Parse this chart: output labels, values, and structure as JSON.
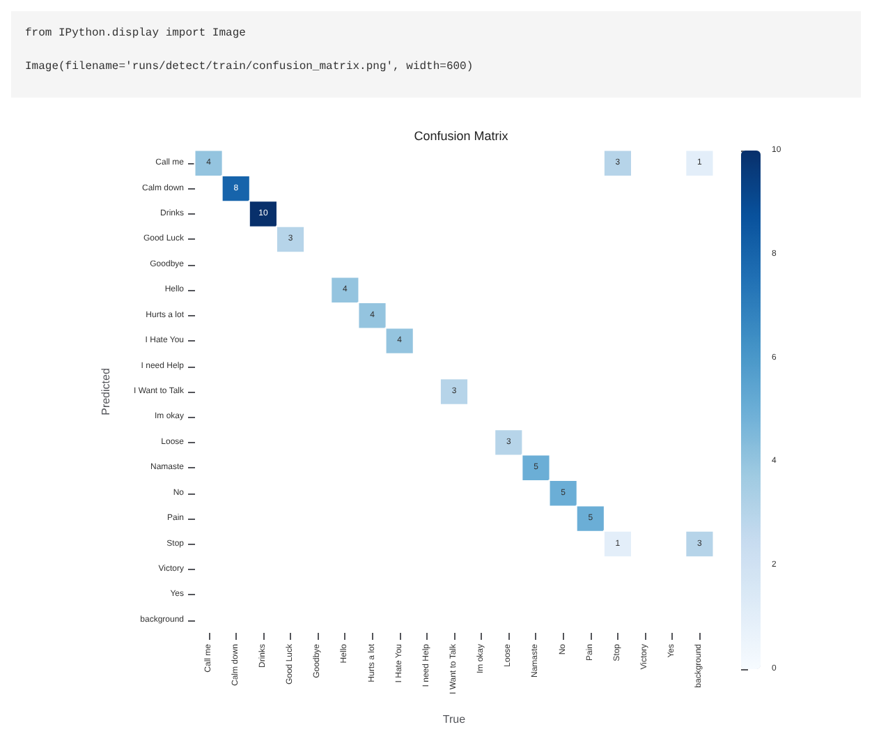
{
  "chart_data": {
    "type": "heatmap",
    "title": "Confusion Matrix",
    "xlabel": "True",
    "ylabel": "Predicted",
    "annotations": [
      "from IPython.display import Image",
      "Image(filename='runs/detect/train/confusion_matrix.png', width=600)"
    ],
    "categories": [
      "Call me",
      "Calm down",
      "Drinks",
      "Good Luck",
      "Goodbye",
      "Hello",
      "Hurts a lot",
      "I Hate You",
      "I need Help",
      "I Want to Talk",
      "Im okay",
      "Loose",
      "Namaste",
      "No",
      "Pain",
      "Stop",
      "Victory",
      "Yes",
      "background"
    ],
    "y_categories": [
      "Call me",
      "Calm down",
      "Drinks",
      "Good Luck",
      "Goodbye",
      "Hello",
      "Hurts a lot",
      "I Hate You",
      "I need Help",
      "I Want to Talk",
      "Im okay",
      "Loose",
      "Namaste",
      "No",
      "Pain",
      "Stop",
      "Victory",
      "Yes",
      "background"
    ],
    "cells": [
      [
        4,
        null,
        null,
        null,
        null,
        null,
        null,
        null,
        null,
        null,
        null,
        null,
        null,
        null,
        null,
        3,
        null,
        null,
        1
      ],
      [
        null,
        8,
        null,
        null,
        null,
        null,
        null,
        null,
        null,
        null,
        null,
        null,
        null,
        null,
        null,
        null,
        null,
        null,
        null
      ],
      [
        null,
        null,
        10,
        null,
        null,
        null,
        null,
        null,
        null,
        null,
        null,
        null,
        null,
        null,
        null,
        null,
        null,
        null,
        null
      ],
      [
        null,
        null,
        null,
        3,
        null,
        null,
        null,
        null,
        null,
        null,
        null,
        null,
        null,
        null,
        null,
        null,
        null,
        null,
        null
      ],
      [
        null,
        null,
        null,
        null,
        null,
        null,
        null,
        null,
        null,
        null,
        null,
        null,
        null,
        null,
        null,
        null,
        null,
        null,
        null
      ],
      [
        null,
        null,
        null,
        null,
        null,
        4,
        null,
        null,
        null,
        null,
        null,
        null,
        null,
        null,
        null,
        null,
        null,
        null,
        null
      ],
      [
        null,
        null,
        null,
        null,
        null,
        null,
        4,
        null,
        null,
        null,
        null,
        null,
        null,
        null,
        null,
        null,
        null,
        null,
        null
      ],
      [
        null,
        null,
        null,
        null,
        null,
        null,
        null,
        4,
        null,
        null,
        null,
        null,
        null,
        null,
        null,
        null,
        null,
        null,
        null
      ],
      [
        null,
        null,
        null,
        null,
        null,
        null,
        null,
        null,
        null,
        null,
        null,
        null,
        null,
        null,
        null,
        null,
        null,
        null,
        null
      ],
      [
        null,
        null,
        null,
        null,
        null,
        null,
        null,
        null,
        null,
        3,
        null,
        null,
        null,
        null,
        null,
        null,
        null,
        null,
        null
      ],
      [
        null,
        null,
        null,
        null,
        null,
        null,
        null,
        null,
        null,
        null,
        null,
        null,
        null,
        null,
        null,
        null,
        null,
        null,
        null
      ],
      [
        null,
        null,
        null,
        null,
        null,
        null,
        null,
        null,
        null,
        null,
        null,
        3,
        null,
        null,
        null,
        null,
        null,
        null,
        null
      ],
      [
        null,
        null,
        null,
        null,
        null,
        null,
        null,
        null,
        null,
        null,
        null,
        null,
        5,
        null,
        null,
        null,
        null,
        null,
        null
      ],
      [
        null,
        null,
        null,
        null,
        null,
        null,
        null,
        null,
        null,
        null,
        null,
        null,
        null,
        5,
        null,
        null,
        null,
        null,
        null
      ],
      [
        null,
        null,
        null,
        null,
        null,
        null,
        null,
        null,
        null,
        null,
        null,
        null,
        null,
        null,
        5,
        null,
        null,
        null,
        null
      ],
      [
        null,
        null,
        null,
        null,
        null,
        null,
        null,
        null,
        null,
        null,
        null,
        null,
        null,
        null,
        null,
        1,
        null,
        null,
        3
      ],
      [
        null,
        null,
        null,
        null,
        null,
        null,
        null,
        null,
        null,
        null,
        null,
        null,
        null,
        null,
        null,
        null,
        null,
        null,
        null
      ],
      [
        null,
        null,
        null,
        null,
        null,
        null,
        null,
        null,
        null,
        null,
        null,
        null,
        null,
        null,
        null,
        null,
        null,
        null,
        null
      ],
      [
        null,
        null,
        null,
        null,
        null,
        null,
        null,
        null,
        null,
        null,
        null,
        null,
        null,
        null,
        null,
        null,
        null,
        null,
        null
      ]
    ],
    "data_labels": true,
    "clim": [
      0,
      10
    ],
    "cticks": [
      0,
      2,
      4,
      6,
      8,
      10
    ],
    "grid": false
  }
}
